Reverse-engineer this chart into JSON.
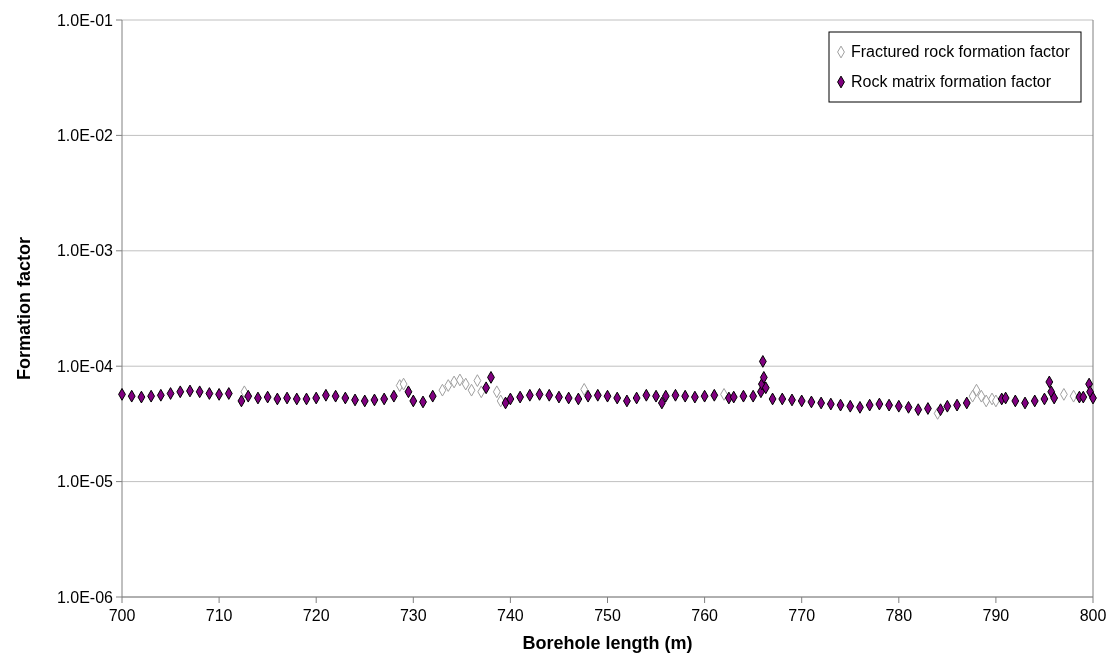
{
  "chart_data": {
    "type": "scatter",
    "xlabel": "Borehole length (m)",
    "ylabel": "Formation factor",
    "log": "y",
    "grid": "y",
    "legend": "top right",
    "marker": "diamond",
    "xlim": [
      700,
      800
    ],
    "xticks": [
      700,
      710,
      720,
      730,
      740,
      750,
      760,
      770,
      780,
      790,
      800
    ],
    "ylim": [
      1e-06,
      0.1
    ],
    "yticks": [
      {
        "value": 1e-06,
        "label": "1.0E-06"
      },
      {
        "value": 1e-05,
        "label": "1.0E-05"
      },
      {
        "value": 0.0001,
        "label": "1.0E-04"
      },
      {
        "value": 0.001,
        "label": "1.0E-03"
      },
      {
        "value": 0.01,
        "label": "1.0E-02"
      },
      {
        "value": 0.1,
        "label": "1.0E-01"
      }
    ],
    "series": [
      {
        "name": "Fractured rock formation factor",
        "color": "#a0a0a0",
        "x": [
          712.6,
          728.6,
          729,
          733,
          733.6,
          734.2,
          734.8,
          735.4,
          736,
          736.6,
          737,
          738.6,
          739,
          747.6,
          762,
          784,
          787.6,
          788,
          788.5,
          789,
          789.6,
          790,
          797,
          798
        ],
        "values": [
          6e-05,
          6.8e-05,
          7e-05,
          6.2e-05,
          6.8e-05,
          7.3e-05,
          7.6e-05,
          7e-05,
          6.2e-05,
          7.5e-05,
          6e-05,
          6e-05,
          5e-05,
          6.3e-05,
          5.7e-05,
          3.9e-05,
          5.5e-05,
          6.2e-05,
          5.5e-05,
          5e-05,
          5.2e-05,
          5e-05,
          5.7e-05,
          5.5e-05
        ]
      },
      {
        "name": "Rock matrix formation factor",
        "color": "#800080",
        "x": [
          700,
          701,
          702,
          703,
          704,
          705,
          706,
          707,
          708,
          709,
          710,
          711,
          712.3,
          713,
          714,
          715,
          716,
          717,
          718,
          719,
          720,
          721,
          722,
          723,
          724,
          725,
          726,
          727,
          728,
          729.5,
          730,
          731,
          732,
          737.5,
          738,
          739.5,
          740,
          741,
          742,
          743,
          744,
          745,
          746,
          747,
          748,
          749,
          750,
          751,
          752,
          753,
          754,
          755,
          755.6,
          756,
          757,
          758,
          759,
          760,
          761,
          762.5,
          763,
          764,
          765,
          765.8,
          765.9,
          766,
          766.1,
          766.3,
          767,
          768,
          769,
          770,
          771,
          772,
          773,
          774,
          775,
          776,
          777,
          778,
          779,
          780,
          781,
          782,
          783,
          784.3,
          785,
          786,
          787,
          790.6,
          791,
          792,
          793,
          794,
          795,
          795.5,
          795.7,
          796,
          798.6,
          799,
          799.6,
          799.7,
          800
        ],
        "values": [
          5.7e-05,
          5.5e-05,
          5.4e-05,
          5.5e-05,
          5.6e-05,
          5.8e-05,
          6e-05,
          6.1e-05,
          6e-05,
          5.8e-05,
          5.7e-05,
          5.8e-05,
          5e-05,
          5.5e-05,
          5.3e-05,
          5.4e-05,
          5.2e-05,
          5.3e-05,
          5.2e-05,
          5.2e-05,
          5.3e-05,
          5.6e-05,
          5.5e-05,
          5.3e-05,
          5.1e-05,
          5e-05,
          5.1e-05,
          5.2e-05,
          5.5e-05,
          6e-05,
          5e-05,
          4.9e-05,
          5.5e-05,
          6.5e-05,
          8e-05,
          4.8e-05,
          5.2e-05,
          5.4e-05,
          5.6e-05,
          5.7e-05,
          5.6e-05,
          5.4e-05,
          5.3e-05,
          5.2e-05,
          5.5e-05,
          5.6e-05,
          5.5e-05,
          5.3e-05,
          5e-05,
          5.3e-05,
          5.6e-05,
          5.5e-05,
          4.8e-05,
          5.5e-05,
          5.6e-05,
          5.5e-05,
          5.4e-05,
          5.5e-05,
          5.6e-05,
          5.3e-05,
          5.4e-05,
          5.5e-05,
          5.5e-05,
          6e-05,
          7e-05,
          0.00011,
          8e-05,
          6.5e-05,
          5.2e-05,
          5.2e-05,
          5.1e-05,
          5e-05,
          4.9e-05,
          4.8e-05,
          4.7e-05,
          4.6e-05,
          4.5e-05,
          4.4e-05,
          4.6e-05,
          4.7e-05,
          4.6e-05,
          4.5e-05,
          4.4e-05,
          4.2e-05,
          4.3e-05,
          4.2e-05,
          4.5e-05,
          4.6e-05,
          4.8e-05,
          5.2e-05,
          5.3e-05,
          5e-05,
          4.8e-05,
          5e-05,
          5.2e-05,
          7.3e-05,
          6e-05,
          5.3e-05,
          5.4e-05,
          5.4e-05,
          7e-05,
          6e-05,
          5.3e-05
        ]
      }
    ]
  }
}
